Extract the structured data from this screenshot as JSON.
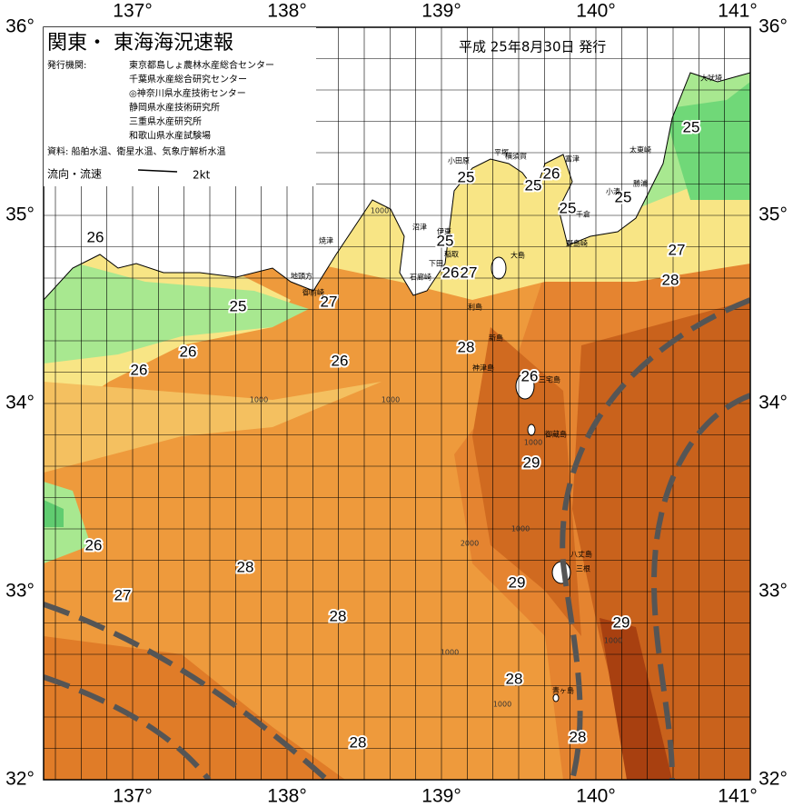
{
  "header": {
    "title": "関東・ 東海海況速報",
    "date": "平成 25年8月30日 発行",
    "issuer_label": "発行機関:",
    "issuers": [
      "東京都島しょ農林水産総合センター",
      "千葉県水産総合研究センター",
      "◎神奈川県水産技術センター",
      "静岡県水産技術研究所",
      "三重県水産研究所",
      "和歌山県水産試験場"
    ],
    "source": "資料: 船舶水温、衛星水温、気象庁解析水温",
    "flow_label": "流向・流速",
    "speed_label": "2kt"
  },
  "axes": {
    "lon_ticks": [
      {
        "value": 137,
        "label": "137°"
      },
      {
        "value": 138,
        "label": "138°"
      },
      {
        "value": 139,
        "label": "139°"
      },
      {
        "value": 140,
        "label": "140°"
      },
      {
        "value": 141,
        "label": "141°"
      }
    ],
    "lat_ticks": [
      {
        "value": 32,
        "label": "32°"
      },
      {
        "value": 33,
        "label": "33°"
      },
      {
        "value": 34,
        "label": "34°"
      },
      {
        "value": 35,
        "label": "35°"
      },
      {
        "value": 36,
        "label": "36°"
      }
    ]
  },
  "contour_labels": [
    "26",
    "25",
    "27",
    "26",
    "26",
    "26",
    "25",
    "25",
    "26",
    "25",
    "25",
    "26",
    "27",
    "28",
    "26",
    "25",
    "25",
    "27",
    "28",
    "29",
    "26",
    "27",
    "28",
    "28",
    "29",
    "29",
    "28",
    "28",
    "28"
  ],
  "place_names": [
    "大吠埼",
    "太東崎",
    "勝浦",
    "小湊",
    "千倉",
    "野島崎",
    "富津",
    "横須賀",
    "平塚",
    "小田原",
    "伊東",
    "稲取",
    "下田",
    "石廊崎",
    "沼津",
    "焼津",
    "御前崎",
    "地頭方",
    "大島",
    "利島",
    "新島",
    "神津島",
    "三宅島",
    "御蔵島",
    "八丈島",
    "三根",
    "青ヶ島"
  ],
  "depth_labels": [
    "1000",
    "1000",
    "1000",
    "2000",
    "1000",
    "1000",
    "1000",
    "1000",
    "1000"
  ]
}
